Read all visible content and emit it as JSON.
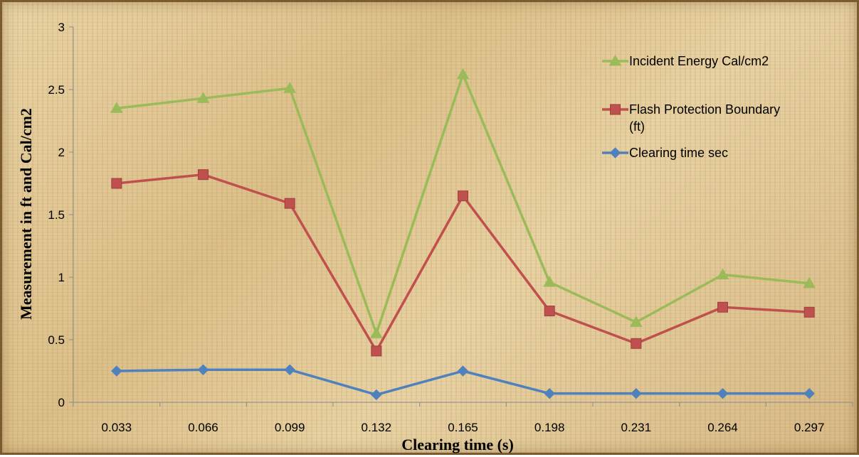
{
  "chart_data": {
    "type": "line",
    "title": "",
    "xlabel": "Clearing time (s)",
    "ylabel": "Measurement in ft and Cal/cm2",
    "categories": [
      "0.033",
      "0.066",
      "0.099",
      "0.132",
      "0.165",
      "0.198",
      "0.231",
      "0.264",
      "0.297"
    ],
    "ylim": [
      0,
      3
    ],
    "yticks": [
      "0",
      "0.5",
      "1",
      "1.5",
      "2",
      "2.5",
      "3"
    ],
    "grid": false,
    "legend_position": "top-right",
    "series": [
      {
        "name": "Incident Energy  Cal/cm2",
        "marker": "triangle",
        "color": "#9bbb59",
        "values": [
          2.35,
          2.43,
          2.51,
          0.55,
          2.62,
          0.96,
          0.64,
          1.02,
          0.95
        ]
      },
      {
        "name": "Flash Protection Boundary (ft)",
        "marker": "square",
        "color": "#c0504d",
        "values": [
          1.75,
          1.82,
          1.59,
          0.41,
          1.65,
          0.73,
          0.47,
          0.76,
          0.72
        ]
      },
      {
        "name": "Clearing time   sec",
        "marker": "diamond",
        "color": "#4f81bd",
        "values": [
          0.25,
          0.26,
          0.26,
          0.06,
          0.25,
          0.07,
          0.07,
          0.07,
          0.07
        ]
      }
    ]
  }
}
